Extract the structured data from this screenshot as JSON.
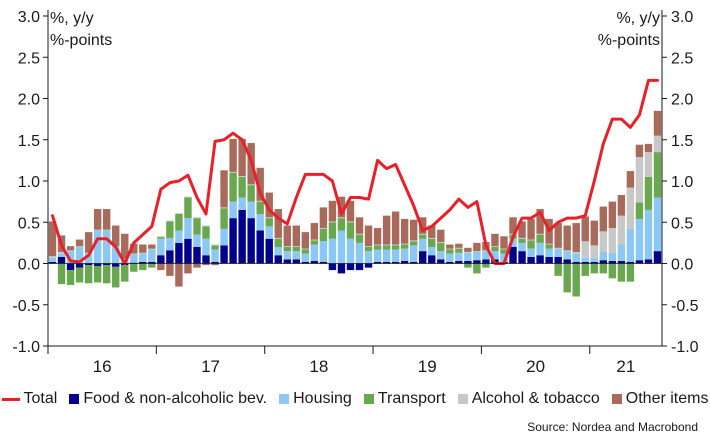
{
  "chart_data": {
    "type": "bar",
    "stacked": true,
    "left_unit_line1": "%, y/y",
    "left_unit_line2": "%-points",
    "right_unit_line1": "%, y/y",
    "right_unit_line2": "%-points",
    "ylim": [
      -1.0,
      3.0
    ],
    "yticks": [
      "3.0",
      "2.5",
      "2.0",
      "1.5",
      "1.0",
      "0.5",
      "0.0",
      "-0.5",
      "-1.0"
    ],
    "ytick_values": [
      3.0,
      2.5,
      2.0,
      1.5,
      1.0,
      0.5,
      0.0,
      -0.5,
      -1.0
    ],
    "x_tick_labels": [
      "16",
      "17",
      "18",
      "19",
      "20",
      "21"
    ],
    "months_per_year": 12,
    "start_year": 2016,
    "gridlines": false,
    "legend_position": "bottom",
    "series": [
      {
        "name": "Food & non-alcoholic bev.",
        "color": "#00008b",
        "values": [
          0.02,
          0.08,
          -0.08,
          -0.05,
          -0.02,
          -0.03,
          -0.02,
          -0.04,
          -0.02,
          0.01,
          0.02,
          0.02,
          0.1,
          0.16,
          0.25,
          0.3,
          0.2,
          0.1,
          0.02,
          0.22,
          0.55,
          0.65,
          0.55,
          0.4,
          0.3,
          0.1,
          0.05,
          0.05,
          0.02,
          0.03,
          0.02,
          -0.08,
          -0.12,
          -0.08,
          -0.08,
          -0.05,
          0.02,
          0.02,
          0.02,
          0.03,
          0.02,
          0.15,
          0.1,
          0.05,
          0.02,
          0.03,
          0.03,
          0.04,
          0.05,
          0.05,
          0.02,
          0.2,
          0.15,
          0.08,
          0.1,
          0.08,
          0.08,
          0.05,
          0.02,
          0.02,
          0.02,
          0.04,
          0.03,
          0.03,
          0.02,
          0.04,
          0.05,
          0.15
        ]
      },
      {
        "name": "Housing",
        "color": "#8cc8f5",
        "values": [
          0.05,
          0.04,
          0.15,
          0.2,
          0.12,
          0.4,
          0.4,
          0.2,
          0.05,
          0.1,
          0.1,
          0.15,
          0.2,
          0.15,
          0.15,
          0.25,
          0.15,
          0.2,
          0.15,
          0.2,
          0.2,
          0.15,
          0.2,
          0.2,
          0.15,
          0.1,
          0.1,
          0.1,
          0.1,
          0.2,
          0.25,
          0.3,
          0.4,
          0.3,
          0.25,
          0.15,
          0.15,
          0.15,
          0.15,
          0.15,
          0.2,
          0.15,
          0.1,
          0.1,
          0.1,
          0.1,
          0.1,
          0.1,
          0.1,
          0.1,
          0.1,
          0.1,
          0.1,
          0.1,
          0.15,
          0.1,
          0.1,
          0.1,
          0.1,
          0.05,
          0.05,
          0.1,
          0.1,
          0.2,
          0.4,
          0.5,
          0.6,
          0.65
        ]
      },
      {
        "name": "Transport",
        "color": "#6aa84f",
        "values": [
          0.0,
          -0.25,
          -0.18,
          -0.18,
          -0.22,
          -0.2,
          -0.22,
          -0.25,
          -0.2,
          -0.1,
          -0.08,
          -0.05,
          0.02,
          0.2,
          0.2,
          0.25,
          0.2,
          0.15,
          0.05,
          0.25,
          0.35,
          0.25,
          0.2,
          0.15,
          0.1,
          0.1,
          0.05,
          0.05,
          0.05,
          0.05,
          0.15,
          0.2,
          0.15,
          0.2,
          0.1,
          0.05,
          0.05,
          0.05,
          0.05,
          0.05,
          0.05,
          0.05,
          0.1,
          0.1,
          0.05,
          0.05,
          -0.05,
          -0.12,
          -0.05,
          0.05,
          0.05,
          0.05,
          0.05,
          0.1,
          0.1,
          0.05,
          -0.15,
          -0.35,
          -0.4,
          -0.15,
          -0.12,
          -0.12,
          -0.18,
          -0.22,
          -0.22,
          0.2,
          0.4,
          0.55
        ]
      },
      {
        "name": "Alcohol & tobacco",
        "color": "#c8c8c8",
        "values": [
          0.02,
          0.02,
          0.01,
          0.01,
          0.01,
          0.01,
          0.01,
          0.01,
          0.01,
          0.01,
          0.01,
          0.01,
          0.01,
          0.01,
          0.01,
          0.01,
          0.01,
          0.01,
          0.01,
          0.01,
          0.01,
          0.01,
          0.01,
          0.01,
          0.01,
          0.01,
          0.01,
          0.01,
          0.01,
          0.01,
          0.01,
          0.01,
          0.01,
          0.01,
          0.01,
          0.01,
          0.01,
          0.01,
          0.01,
          0.01,
          0.01,
          0.01,
          0.01,
          0.01,
          0.01,
          0.01,
          0.01,
          0.01,
          0.01,
          0.01,
          0.01,
          0.01,
          0.01,
          0.01,
          0.01,
          0.01,
          0.01,
          0.01,
          0.02,
          0.2,
          0.15,
          0.25,
          0.3,
          0.35,
          0.5,
          0.55,
          0.3,
          0.2
        ]
      },
      {
        "name": "Other items",
        "color": "#a86a5a",
        "values": [
          0.42,
          0.2,
          0.05,
          0.08,
          0.25,
          0.25,
          0.25,
          0.25,
          0.3,
          0.12,
          0.1,
          0.05,
          -0.08,
          -0.15,
          -0.28,
          -0.12,
          -0.05,
          -0.02,
          -0.02,
          0.45,
          0.4,
          0.45,
          0.5,
          0.4,
          0.3,
          0.35,
          0.25,
          0.25,
          0.2,
          0.2,
          0.25,
          0.25,
          0.25,
          0.25,
          0.2,
          0.25,
          0.2,
          0.35,
          0.4,
          0.3,
          0.25,
          0.2,
          0.15,
          0.15,
          0.05,
          0.05,
          0.05,
          0.1,
          0.1,
          0.15,
          0.15,
          0.2,
          0.2,
          0.25,
          0.3,
          0.3,
          0.3,
          0.3,
          0.35,
          0.3,
          0.3,
          0.3,
          0.32,
          0.25,
          0.2,
          0.15,
          0.1,
          0.3
        ]
      }
    ],
    "total_series": {
      "name": "Total",
      "color": "#e8202a",
      "values": [
        0.58,
        0.22,
        0.03,
        0.02,
        0.1,
        0.3,
        0.3,
        0.2,
        0.0,
        0.25,
        0.35,
        0.45,
        0.9,
        0.98,
        1.0,
        1.07,
        0.8,
        0.6,
        1.48,
        1.5,
        1.58,
        1.5,
        1.25,
        0.85,
        0.65,
        0.55,
        0.48,
        0.8,
        1.08,
        1.08,
        1.08,
        1.0,
        0.6,
        0.8,
        0.8,
        0.78,
        1.25,
        1.15,
        1.2,
        0.95,
        0.7,
        0.4,
        0.45,
        0.55,
        0.65,
        0.78,
        0.68,
        0.75,
        0.22,
        0.0,
        0.0,
        0.32,
        0.55,
        0.55,
        0.62,
        0.4,
        0.5,
        0.55,
        0.55,
        0.58,
        1.0,
        1.45,
        1.75,
        1.75,
        1.65,
        1.8,
        2.22,
        2.22
      ]
    }
  },
  "legend": {
    "total": "Total",
    "food": "Food & non-alcoholic bev.",
    "housing": "Housing",
    "transport": "Transport",
    "alcohol": "Alcohol & tobacco",
    "other": "Other items"
  },
  "source": "Source: Nordea and Macrobond"
}
